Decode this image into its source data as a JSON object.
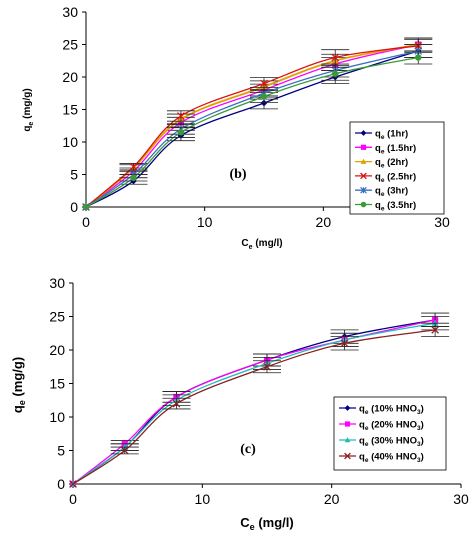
{
  "chart_data": [
    {
      "type": "line",
      "panel_label": "(b)",
      "xlabel": {
        "base": "C",
        "sub": "e",
        "rest": " (mg/l)"
      },
      "ylabel": {
        "base": "q",
        "sub": "e",
        "rest": " (mg/g)"
      },
      "xlim": [
        0,
        30
      ],
      "ylim": [
        0,
        30
      ],
      "xticks": [
        0,
        10,
        20,
        30
      ],
      "yticks": [
        0,
        5,
        10,
        15,
        20,
        25,
        30
      ],
      "grid": false,
      "legend_position": "right",
      "x": [
        0,
        4,
        8,
        15,
        21,
        28
      ],
      "series": [
        {
          "name": "(1hr)",
          "label_base": "q",
          "label_sub": "e",
          "color": "#000080",
          "marker": "diamond",
          "values": [
            0,
            4.0,
            11.0,
            16.0,
            20.0,
            24.0
          ],
          "errors": [
            0,
            0.5,
            0.8,
            0.9,
            1.0,
            1.0
          ]
        },
        {
          "name": "(1.5hr)",
          "label_base": "q",
          "label_sub": "e",
          "color": "#ff00ff",
          "marker": "square",
          "values": [
            0,
            5.5,
            13.0,
            18.0,
            22.0,
            25.0
          ],
          "errors": [
            0,
            0.5,
            0.8,
            0.9,
            1.0,
            1.0
          ]
        },
        {
          "name": "(2hr)",
          "label_base": "q",
          "label_sub": "e",
          "color": "#e0a000",
          "marker": "triangle",
          "values": [
            0,
            6.0,
            13.5,
            18.5,
            22.5,
            25.0
          ],
          "errors": [
            0,
            0.5,
            0.8,
            0.9,
            1.0,
            1.0
          ]
        },
        {
          "name": "(2.5hr)",
          "label_base": "q",
          "label_sub": "e",
          "color": "#dd1111",
          "marker": "x",
          "values": [
            0,
            6.2,
            14.0,
            19.0,
            23.0,
            24.8
          ],
          "errors": [
            0,
            0.5,
            0.8,
            0.9,
            1.2,
            1.0
          ]
        },
        {
          "name": "(3hr)",
          "label_base": "q",
          "label_sub": "e",
          "color": "#3a70c0",
          "marker": "star",
          "values": [
            0,
            5.0,
            12.0,
            17.5,
            21.0,
            24.0
          ],
          "errors": [
            0,
            0.5,
            0.8,
            0.9,
            1.0,
            1.0
          ]
        },
        {
          "name": "(3.5hr)",
          "label_base": "q",
          "label_sub": "e",
          "color": "#3a9a3a",
          "marker": "circle",
          "values": [
            0,
            4.5,
            11.5,
            17.0,
            20.5,
            23.0
          ],
          "errors": [
            0,
            0.5,
            0.8,
            0.9,
            1.0,
            1.0
          ]
        }
      ]
    },
    {
      "type": "line",
      "panel_label": "(c)",
      "xlabel": {
        "base": "C",
        "sub": "e",
        "rest": " (mg/l)"
      },
      "ylabel": {
        "base": "q",
        "sub": "e",
        "rest": " (mg/g)"
      },
      "xlim": [
        0,
        30
      ],
      "ylim": [
        0,
        30
      ],
      "xticks": [
        0,
        10,
        20,
        30
      ],
      "yticks": [
        0,
        5,
        10,
        15,
        20,
        25,
        30
      ],
      "grid": false,
      "legend_position": "right",
      "x": [
        0,
        4,
        8,
        15,
        21,
        28
      ],
      "series": [
        {
          "name": "(10% HNO3)",
          "label_base": "q",
          "label_sub": "e",
          "label_pre": " (10% HNO",
          "label_sub2": "3",
          "label_post": ")",
          "color": "#000080",
          "marker": "diamond",
          "values": [
            0,
            5.5,
            13.0,
            18.5,
            22.0,
            24.5
          ],
          "errors": [
            0,
            0.5,
            0.8,
            0.9,
            1.0,
            1.0
          ]
        },
        {
          "name": "(20% HNO3)",
          "label_base": "q",
          "label_sub": "e",
          "label_pre": " (20% HNO",
          "label_sub2": "3",
          "label_post": ")",
          "color": "#ff00ff",
          "marker": "square",
          "values": [
            0,
            6.0,
            13.0,
            18.5,
            21.5,
            24.5
          ],
          "errors": [
            0,
            0.5,
            0.8,
            0.9,
            1.0,
            1.0
          ]
        },
        {
          "name": "(30% HNO3)",
          "label_base": "q",
          "label_sub": "e",
          "label_pre": " (30% HNO",
          "label_sub2": "3",
          "label_post": ")",
          "color": "#22bbbb",
          "marker": "triangle",
          "values": [
            0,
            5.5,
            12.5,
            18.0,
            21.5,
            24.0
          ],
          "errors": [
            0,
            0.5,
            0.8,
            0.9,
            1.0,
            1.0
          ]
        },
        {
          "name": "(40% HNO3)",
          "label_base": "q",
          "label_sub": "e",
          "label_pre": " (40% HNO",
          "label_sub2": "3",
          "label_post": ")",
          "color": "#882222",
          "marker": "x",
          "values": [
            0,
            5.0,
            12.0,
            17.5,
            21.0,
            23.0
          ],
          "errors": [
            0,
            0.5,
            0.8,
            0.9,
            1.0,
            1.0
          ]
        }
      ]
    }
  ]
}
